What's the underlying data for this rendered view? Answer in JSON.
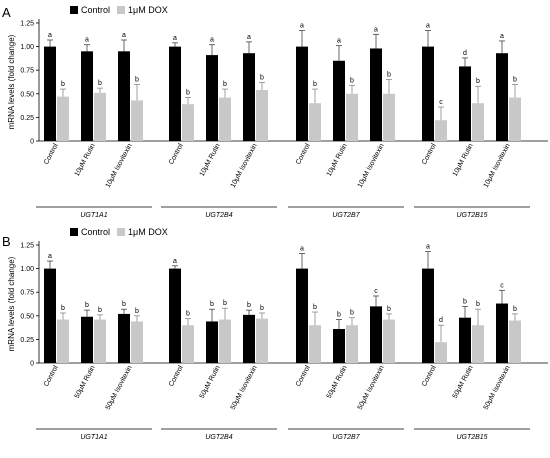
{
  "chart_data": [
    {
      "type": "bar",
      "panel_label": "A",
      "ylabel": "mRNA levels (fold change)",
      "ylim": [
        0,
        1.25
      ],
      "yticks": [
        "0",
        "0.25",
        "0.50",
        "0.75",
        "1.00",
        "1.25"
      ],
      "legend": [
        "Control",
        "1μM DOX"
      ],
      "colors": {
        "Control": "#000000",
        "1μM DOX": "#c8c8c8"
      },
      "groups": [
        {
          "gene": "UGT1A1",
          "categories": [
            "Control",
            "10μM Rutin",
            "10μM Isovitexin"
          ],
          "control": [
            1.0,
            0.95,
            0.95
          ],
          "control_err": [
            0.07,
            0.07,
            0.12
          ],
          "dox": [
            0.47,
            0.51,
            0.43
          ],
          "dox_err": [
            0.08,
            0.05,
            0.17
          ],
          "control_sig": [
            "a",
            "a",
            "a"
          ],
          "dox_sig": [
            "b",
            "b",
            "b"
          ]
        },
        {
          "gene": "UGT2B4",
          "categories": [
            "Control",
            "10μM Rutin",
            "10μM Isovitexin"
          ],
          "control": [
            1.0,
            0.91,
            0.93
          ],
          "control_err": [
            0.04,
            0.11,
            0.12
          ],
          "dox": [
            0.39,
            0.46,
            0.54
          ],
          "dox_err": [
            0.07,
            0.09,
            0.08
          ],
          "control_sig": [
            "a",
            "a",
            "a"
          ],
          "dox_sig": [
            "b",
            "b",
            "b"
          ]
        },
        {
          "gene": "UGT2B7",
          "categories": [
            "Control",
            "10μM Rutin",
            "10μM Isovitexin"
          ],
          "control": [
            1.0,
            0.85,
            0.98
          ],
          "control_err": [
            0.17,
            0.16,
            0.15
          ],
          "dox": [
            0.4,
            0.5,
            0.5
          ],
          "dox_err": [
            0.15,
            0.09,
            0.15
          ],
          "control_sig": [
            "a",
            "a",
            "a"
          ],
          "dox_sig": [
            "b",
            "b",
            "b"
          ]
        },
        {
          "gene": "UGT2B15",
          "categories": [
            "Control",
            "10μM Rutin",
            "10μM Isovitexin"
          ],
          "control": [
            1.0,
            0.79,
            0.93
          ],
          "control_err": [
            0.17,
            0.09,
            0.13
          ],
          "dox": [
            0.22,
            0.4,
            0.46
          ],
          "dox_err": [
            0.14,
            0.18,
            0.14
          ],
          "control_sig": [
            "a",
            "d",
            "a"
          ],
          "dox_sig": [
            "c",
            "b",
            "b"
          ]
        }
      ]
    },
    {
      "type": "bar",
      "panel_label": "B",
      "ylabel": "mRNA levels (fold change)",
      "ylim": [
        0,
        1.25
      ],
      "yticks": [
        "0",
        "0.25",
        "0.50",
        "0.75",
        "1.00",
        "1.25"
      ],
      "legend": [
        "Control",
        "1μM DOX"
      ],
      "colors": {
        "Control": "#000000",
        "1μM DOX": "#c8c8c8"
      },
      "groups": [
        {
          "gene": "UGT1A1",
          "categories": [
            "Control",
            "50μM Rutin",
            "50μM Isovitexin"
          ],
          "control": [
            1.0,
            0.49,
            0.52
          ],
          "control_err": [
            0.08,
            0.07,
            0.05
          ],
          "dox": [
            0.46,
            0.46,
            0.44
          ],
          "dox_err": [
            0.07,
            0.05,
            0.06
          ],
          "control_sig": [
            "a",
            "b",
            "b"
          ],
          "dox_sig": [
            "b",
            "b",
            "b"
          ]
        },
        {
          "gene": "UGT2B4",
          "categories": [
            "Control",
            "50μM Rutin",
            "50μM Isovitexin"
          ],
          "control": [
            1.0,
            0.44,
            0.51
          ],
          "control_err": [
            0.03,
            0.13,
            0.05
          ],
          "dox": [
            0.4,
            0.46,
            0.47
          ],
          "dox_err": [
            0.07,
            0.12,
            0.06
          ],
          "control_sig": [
            "a",
            "b",
            "b"
          ],
          "dox_sig": [
            "b",
            "b",
            "b"
          ]
        },
        {
          "gene": "UGT2B7",
          "categories": [
            "Control",
            "50μM Rutin",
            "50μM Isovitexin"
          ],
          "control": [
            1.0,
            0.36,
            0.6
          ],
          "control_err": [
            0.16,
            0.1,
            0.11
          ],
          "dox": [
            0.4,
            0.4,
            0.46
          ],
          "dox_err": [
            0.14,
            0.08,
            0.06
          ],
          "control_sig": [
            "a",
            "b",
            "c"
          ],
          "dox_sig": [
            "b",
            "b",
            "b"
          ]
        },
        {
          "gene": "UGT2B15",
          "categories": [
            "Control",
            "50μM Rutin",
            "50μM Isovitexin"
          ],
          "control": [
            1.0,
            0.48,
            0.63
          ],
          "control_err": [
            0.18,
            0.12,
            0.14
          ],
          "dox": [
            0.22,
            0.4,
            0.45
          ],
          "dox_err": [
            0.18,
            0.17,
            0.07
          ],
          "control_sig": [
            "a",
            "b",
            "c"
          ],
          "dox_sig": [
            "d",
            "b",
            "b"
          ]
        }
      ]
    }
  ]
}
